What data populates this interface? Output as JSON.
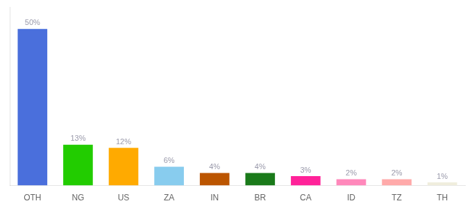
{
  "chart_data": {
    "type": "bar",
    "categories": [
      "OTH",
      "NG",
      "US",
      "ZA",
      "IN",
      "BR",
      "CA",
      "ID",
      "TZ",
      "TH"
    ],
    "values": [
      50,
      13,
      12,
      6,
      4,
      4,
      3,
      2,
      2,
      1
    ],
    "value_labels": [
      "50%",
      "13%",
      "12%",
      "6%",
      "4%",
      "4%",
      "3%",
      "2%",
      "2%",
      "1%"
    ],
    "colors": [
      "#4a6fdc",
      "#22cc00",
      "#ffaa00",
      "#88ccee",
      "#bb5500",
      "#1a7a1a",
      "#ff2299",
      "#ff88bb",
      "#ffaaaa",
      "#f0eedd"
    ],
    "ylim": [
      0,
      57
    ],
    "grid": false,
    "data_labels": true,
    "tick_labels": "x"
  }
}
